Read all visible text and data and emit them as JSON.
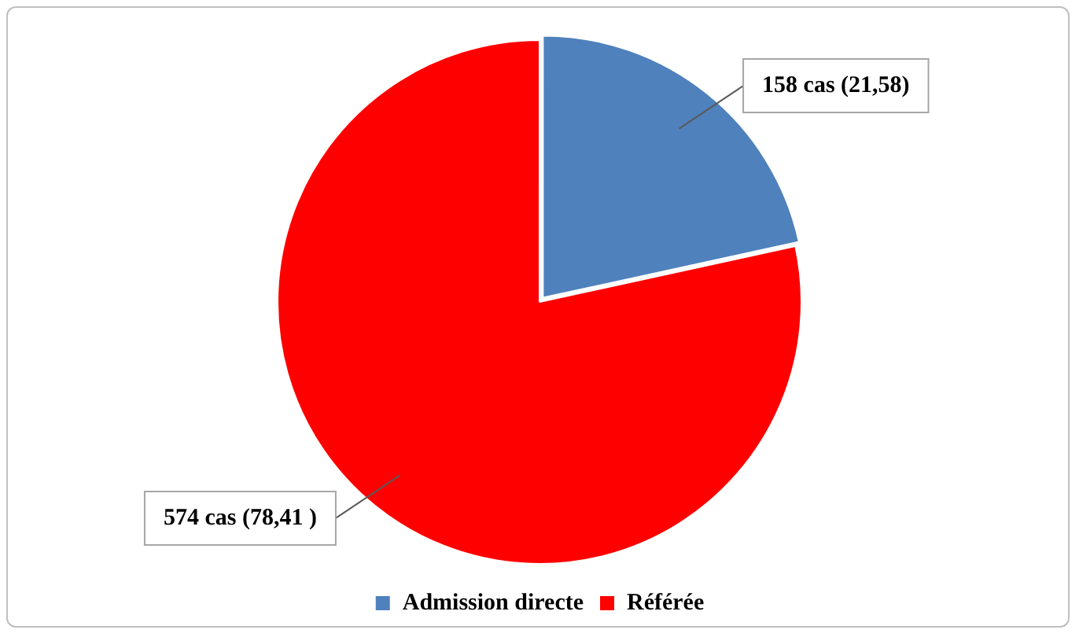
{
  "chart_data": {
    "type": "pie",
    "categories": [
      "Admission directe",
      "Référée"
    ],
    "values": [
      158,
      574
    ],
    "colors": [
      "#4f81bd",
      "#ff0000"
    ],
    "value_labels": [
      "158 cas (21,58)",
      "574 cas (78,41 )"
    ],
    "legend": "bottom"
  }
}
